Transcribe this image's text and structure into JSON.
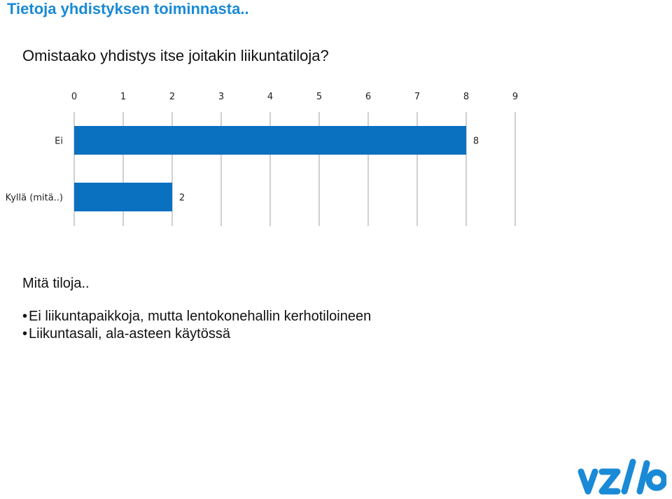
{
  "title": "Tietoja yhdistyksen toiminnasta..",
  "question": "Omistaako yhdistys itse joitakin liikuntatiloja?",
  "chart_data": {
    "type": "bar",
    "orientation": "horizontal",
    "categories": [
      "Ei",
      "Kyllä (mitä..)"
    ],
    "values": [
      8,
      2
    ],
    "xlim": [
      0,
      9
    ],
    "ticks": [
      0,
      1,
      2,
      3,
      4,
      5,
      6,
      7,
      8,
      9
    ],
    "tick_position": "top",
    "grid": true,
    "bar_color": "#0a70c0",
    "title": "",
    "xlabel": "",
    "ylabel": ""
  },
  "subheading": "Mitä tiloja..",
  "answers": [
    "Ei liikuntapaikkoja, mutta lentokonehallin kerhotiloineen",
    "Liikuntasali, ala-asteen käytössä"
  ],
  "logo_icon": "vzalo-logo-icon",
  "logo_color": "#1a8ad6"
}
